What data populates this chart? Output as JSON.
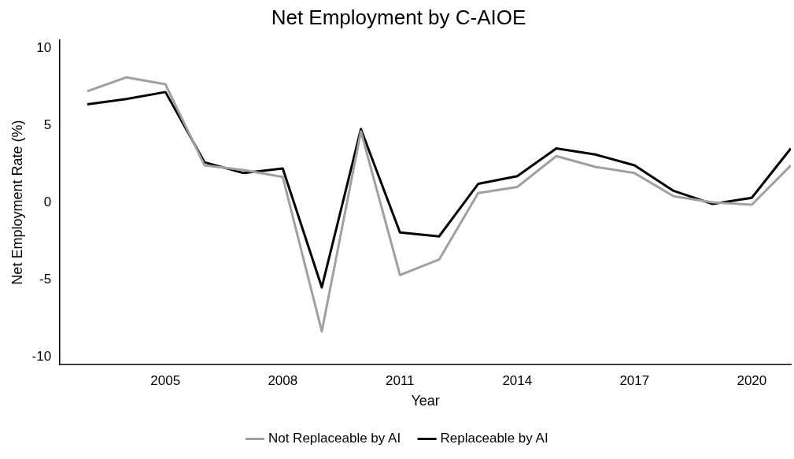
{
  "chart_data": {
    "type": "line",
    "title": "Net Employment by C-AIOE",
    "xlabel": "Year",
    "ylabel": "Net Employment Rate (%)",
    "x": [
      2003,
      2004,
      2005,
      2006,
      2007,
      2008,
      2009,
      2010,
      2011,
      2012,
      2013,
      2014,
      2015,
      2016,
      2017,
      2018,
      2019,
      2020,
      2021
    ],
    "series": [
      {
        "name": "Not Replaceable by AI",
        "color": "#a0a0a0",
        "values": [
          7.2,
          8.1,
          7.65,
          2.4,
          2.1,
          1.65,
          -8.35,
          4.6,
          -4.7,
          -3.7,
          0.6,
          1.0,
          3.0,
          2.3,
          1.9,
          0.4,
          0.0,
          -0.15,
          2.4
        ]
      },
      {
        "name": "Replaceable by AI",
        "color": "#000000",
        "values": [
          6.35,
          6.7,
          7.15,
          2.6,
          1.9,
          2.2,
          -5.5,
          4.75,
          -1.95,
          -2.2,
          1.2,
          1.7,
          3.5,
          3.1,
          2.4,
          0.75,
          -0.1,
          0.3,
          3.5
        ]
      }
    ],
    "xlim": [
      2002.3,
      2021
    ],
    "xticks": [
      2005,
      2008,
      2011,
      2014,
      2017,
      2020
    ],
    "ylim": [
      -10.5,
      10.5
    ],
    "yticks": [
      -10,
      -5,
      0,
      5,
      10
    ],
    "grid": false,
    "legend": "bottom",
    "marker": "none",
    "line_style": "solid"
  }
}
